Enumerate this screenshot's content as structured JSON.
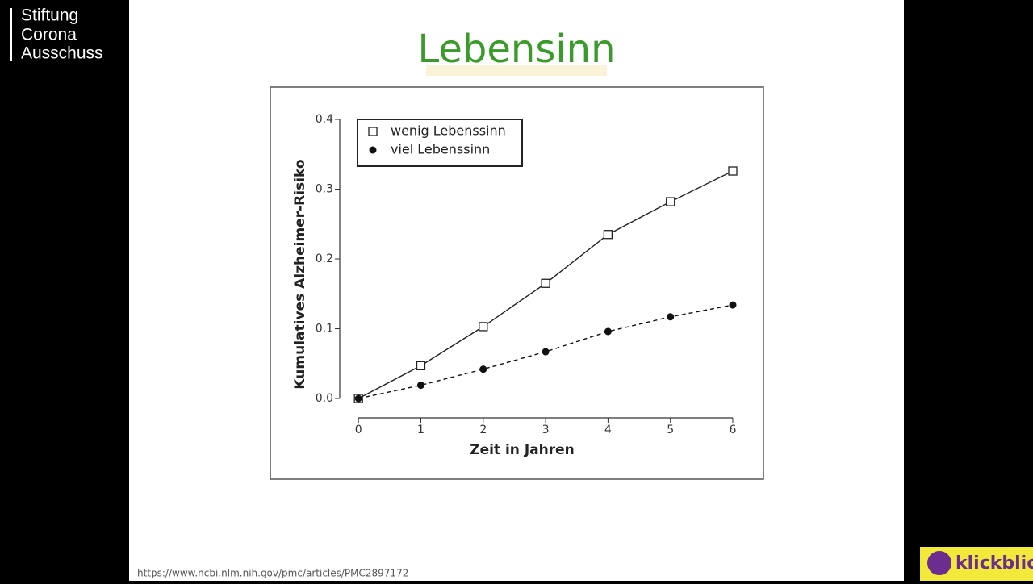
{
  "channel": {
    "name_lines": [
      "Stiftung",
      "Corona",
      "Ausschuss"
    ],
    "logo": "klickblick"
  },
  "slide": {
    "title": "Lebensinn",
    "source": "https://www.ncbi.nlm.nih.gov/pmc/articles/PMC2897172"
  },
  "chart_data": {
    "type": "line",
    "x_label": "Zeit in Jahren",
    "y_label": "Kumulatives Alzheimer-Risiko",
    "x": [
      0,
      1,
      2,
      3,
      4,
      5,
      6
    ],
    "series": [
      {
        "name": "wenig Lebenssinn",
        "color": "#222222",
        "marker": "square-open",
        "line_style": "solid",
        "values": [
          0,
          0.047,
          0.103,
          0.165,
          0.235,
          0.282,
          0.326
        ]
      },
      {
        "name": "viel Lebenssinn",
        "color": "#111111",
        "marker": "circle-filled",
        "line_style": "dashed",
        "values": [
          0,
          0.019,
          0.042,
          0.067,
          0.096,
          0.117,
          0.134
        ]
      }
    ],
    "xlim": [
      -0.3,
      6
    ],
    "xticks": [
      0,
      1,
      2,
      3,
      4,
      5,
      6
    ],
    "ylim": [
      0,
      0.4
    ],
    "yticks": [
      {
        "value": 0,
        "label": "0.0"
      },
      0.1,
      0.2,
      0.3,
      0.4
    ],
    "legend": "upper-left",
    "grid": false
  }
}
